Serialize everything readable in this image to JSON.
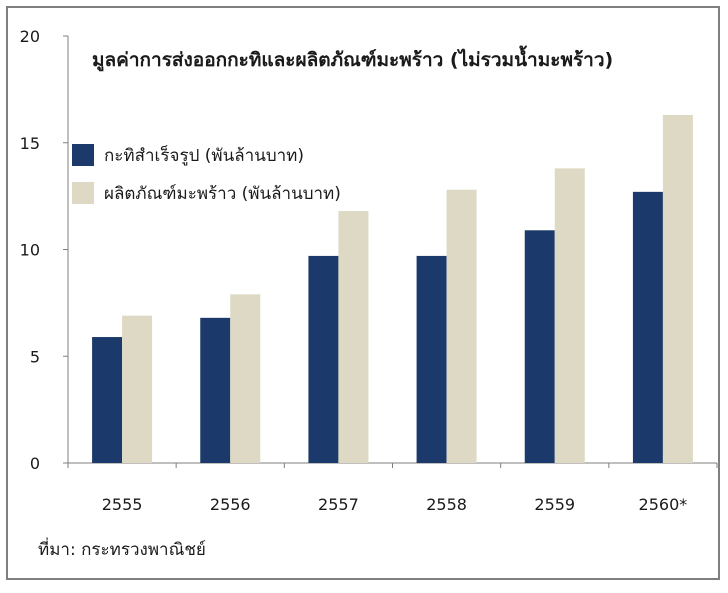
{
  "chart_data": {
    "type": "bar",
    "title": "มูลค่าการส่งออกกะทิและผลิตภัณฑ์มะพร้าว (ไม่รวมน้ำมะพร้าว)",
    "categories": [
      "2555",
      "2556",
      "2557",
      "2558",
      "2559",
      "2560*"
    ],
    "series": [
      {
        "name": "กะทิสำเร็จรูป (พันล้านบาท)",
        "color": "#1b3a6b",
        "values": [
          5.9,
          6.8,
          9.7,
          9.7,
          10.9,
          12.7
        ]
      },
      {
        "name": "ผลิตภัณฑ์มะพร้าว (พันล้านบาท)",
        "color": "#ddd9c4",
        "values": [
          6.9,
          7.9,
          11.8,
          12.8,
          13.8,
          16.3
        ]
      }
    ],
    "ylim": [
      0,
      20
    ],
    "yticks": [
      0,
      5,
      10,
      15,
      20
    ],
    "legend": "top-left",
    "grid": false,
    "source": "ที่มา: กระทรวงพาณิชย์"
  }
}
